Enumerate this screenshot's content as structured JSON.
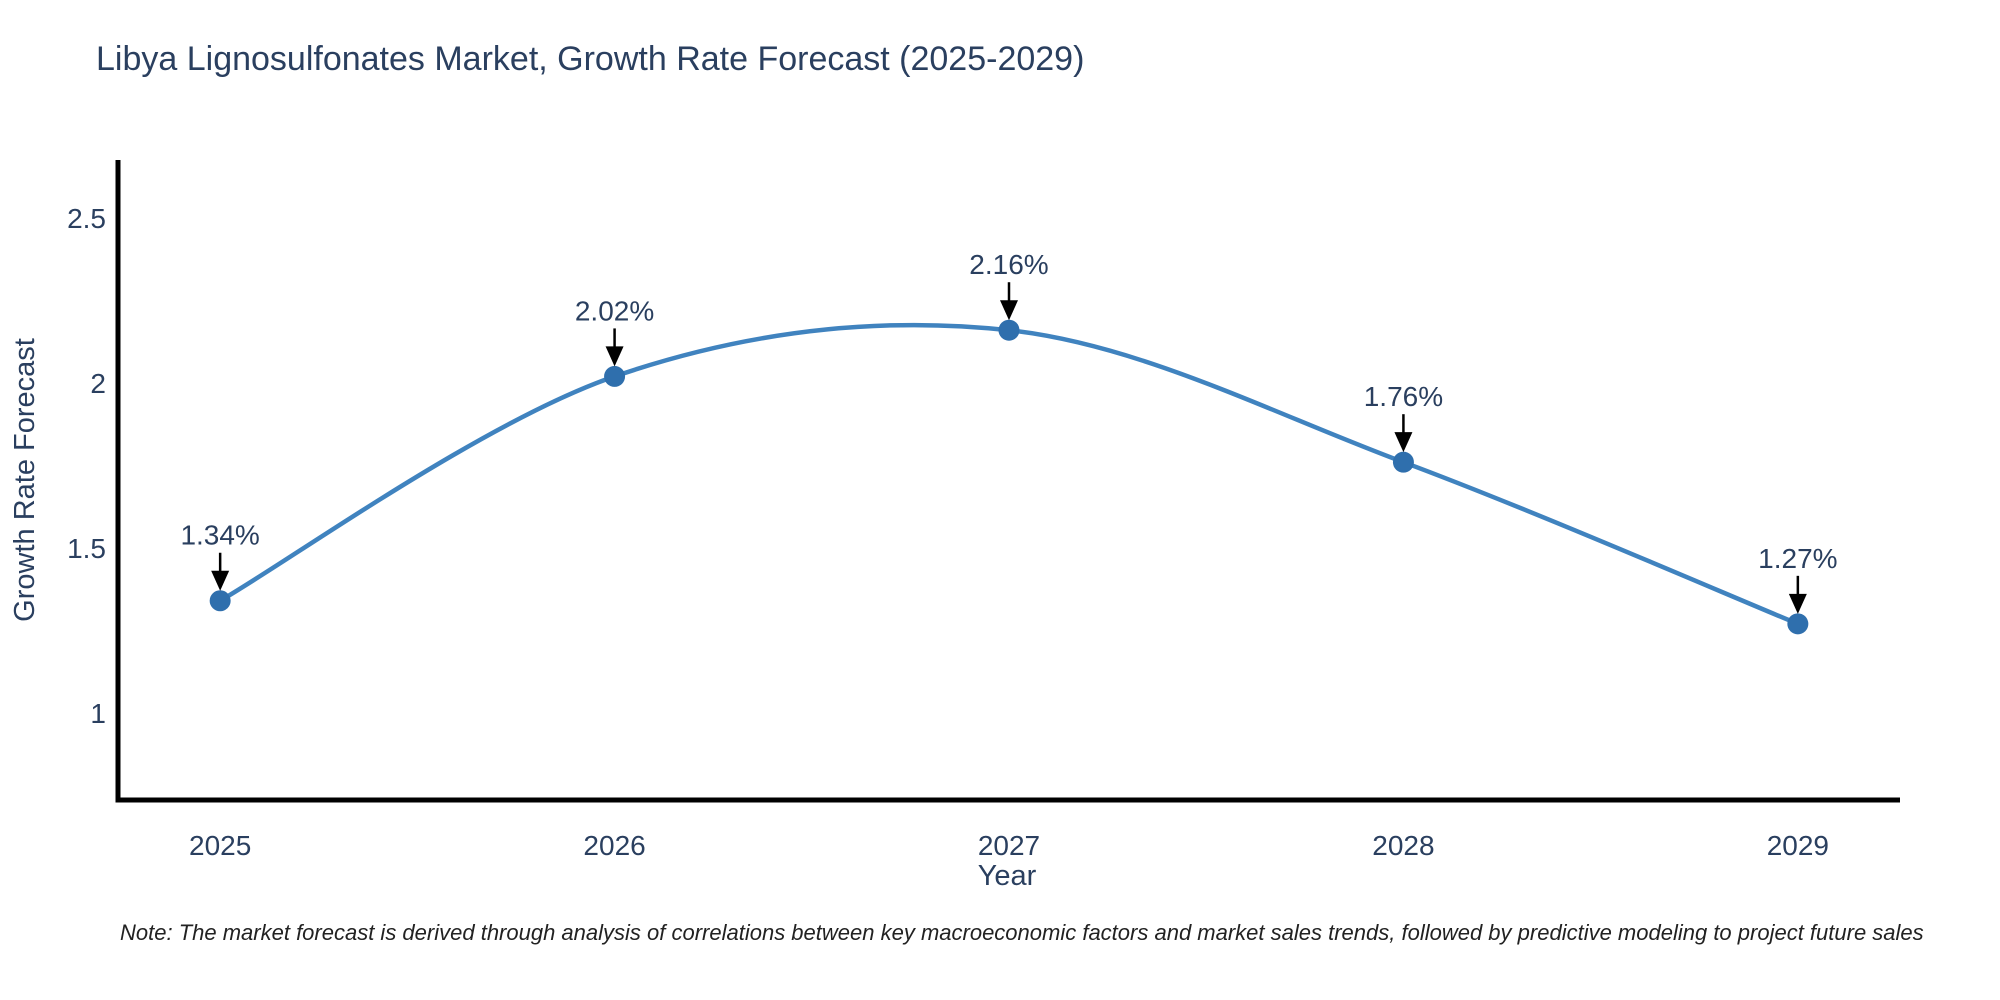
{
  "title": "Libya Lignosulfonates Market, Growth Rate Forecast (2025-2029)",
  "note": "Note: The market forecast is derived through analysis of correlations between key macroeconomic factors and market sales trends, followed by predictive modeling to project future sales",
  "chart_data": {
    "type": "line",
    "title": "Libya Lignosulfonates Market, Growth Rate Forecast (2025-2029)",
    "xlabel": "Year",
    "ylabel": "Growth Rate Forecast",
    "x": [
      2025,
      2026,
      2027,
      2028,
      2029
    ],
    "values": [
      1.34,
      2.02,
      2.16,
      1.76,
      1.27
    ],
    "point_labels": [
      "1.34%",
      "2.02%",
      "2.16%",
      "1.76%",
      "1.27%"
    ],
    "x_tick_labels": [
      "2025",
      "2026",
      "2027",
      "2028",
      "2029"
    ],
    "y_ticks": [
      1,
      1.5,
      2,
      2.5
    ],
    "y_tick_labels": [
      "1",
      "1.5",
      "2",
      "2.5"
    ],
    "xlim": [
      2024.741,
      2029.259
    ],
    "ylim": [
      0.736,
      2.676
    ],
    "line_shape": "spline",
    "grid": false,
    "legend": null,
    "colors": {
      "line": "#4083bf",
      "marker": "#2f6fad",
      "axis": "#000000",
      "tick_text": "#2a3f5f",
      "annotation_text": "#2a3f5f",
      "annotation_arrow": "#000000"
    }
  }
}
